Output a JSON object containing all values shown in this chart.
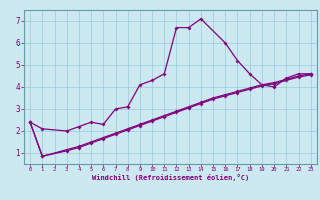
{
  "title": "",
  "xlabel": "Windchill (Refroidissement éolien,°C)",
  "bg_color": "#cce8f0",
  "line_color": "#800080",
  "grid_color": "#99ccdd",
  "border_color": "#6699aa",
  "x_ticks": [
    0,
    1,
    2,
    3,
    4,
    5,
    6,
    7,
    8,
    9,
    10,
    11,
    12,
    13,
    14,
    15,
    16,
    17,
    18,
    19,
    20,
    21,
    22,
    23
  ],
  "y_ticks": [
    1,
    2,
    3,
    4,
    5,
    6,
    7
  ],
  "xlim": [
    -0.5,
    23.5
  ],
  "ylim": [
    0.5,
    7.5
  ],
  "series1_x": [
    0,
    1,
    3,
    4,
    5,
    6,
    7,
    8,
    9,
    10,
    11,
    12,
    13,
    14,
    16,
    17,
    18,
    19,
    20,
    21,
    22,
    23
  ],
  "series1_y": [
    2.4,
    2.1,
    2.0,
    2.2,
    2.4,
    2.3,
    3.0,
    3.1,
    4.1,
    4.3,
    4.6,
    6.7,
    6.7,
    7.1,
    6.0,
    5.2,
    4.6,
    4.1,
    4.0,
    4.4,
    4.6,
    4.6
  ],
  "series2_x": [
    0,
    1,
    3,
    4,
    5,
    6,
    7,
    8,
    9,
    10,
    11,
    12,
    13,
    14,
    15,
    16,
    17,
    18,
    19,
    20,
    21,
    22,
    23
  ],
  "series2_y": [
    2.4,
    0.85,
    1.15,
    1.3,
    1.5,
    1.7,
    1.9,
    2.1,
    2.3,
    2.5,
    2.7,
    2.9,
    3.1,
    3.3,
    3.5,
    3.65,
    3.8,
    3.95,
    4.1,
    4.2,
    4.35,
    4.5,
    4.6
  ],
  "series3_x": [
    0,
    1,
    3,
    4,
    5,
    6,
    7,
    8,
    9,
    10,
    11,
    12,
    13,
    14,
    15,
    16,
    17,
    18,
    19,
    20,
    21,
    22,
    23
  ],
  "series3_y": [
    2.4,
    0.85,
    1.1,
    1.25,
    1.45,
    1.65,
    1.85,
    2.05,
    2.25,
    2.45,
    2.65,
    2.85,
    3.05,
    3.25,
    3.45,
    3.6,
    3.75,
    3.9,
    4.05,
    4.15,
    4.3,
    4.45,
    4.55
  ]
}
